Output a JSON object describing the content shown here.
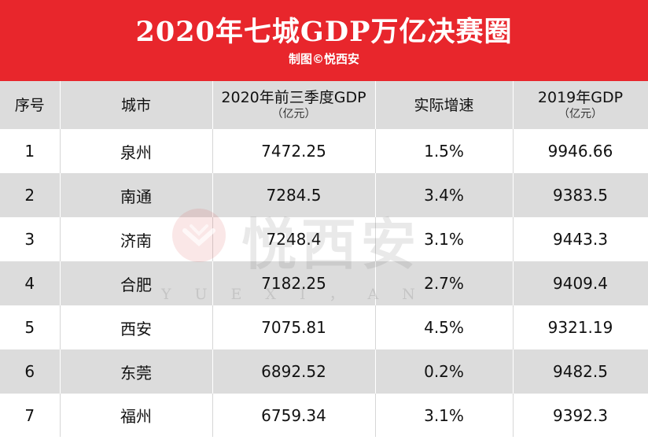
{
  "banner": {
    "title": "2020年七城GDP万亿决赛圈",
    "credit": "制图©悦西安"
  },
  "colors": {
    "banner": "#e8262c",
    "stripe": "#dcdcdc"
  },
  "table": {
    "headers": [
      {
        "label": "序号",
        "unit": ""
      },
      {
        "label": "城市",
        "unit": ""
      },
      {
        "label": "2020年前三季度GDP",
        "unit": "（亿元）"
      },
      {
        "label": "实际增速",
        "unit": ""
      },
      {
        "label": "2019年GDP",
        "unit": "（亿元）"
      }
    ],
    "rows": [
      [
        "1",
        "泉州",
        "7472.25",
        "1.5%",
        "9946.66"
      ],
      [
        "2",
        "南通",
        "7284.5",
        "3.4%",
        "9383.5"
      ],
      [
        "3",
        "济南",
        "7248.4",
        "3.1%",
        "9443.3"
      ],
      [
        "4",
        "合肥",
        "7182.25",
        "2.7%",
        "9409.4"
      ],
      [
        "5",
        "西安",
        "7075.81",
        "4.5%",
        "9321.19"
      ],
      [
        "6",
        "东莞",
        "6892.52",
        "0.2%",
        "9482.5"
      ],
      [
        "7",
        "福州",
        "6759.34",
        "3.1%",
        "9392.3"
      ]
    ]
  },
  "watermark": {
    "text": "悦西安",
    "letters": "YUEXI，AN",
    "logo": "yuexian-logo"
  }
}
